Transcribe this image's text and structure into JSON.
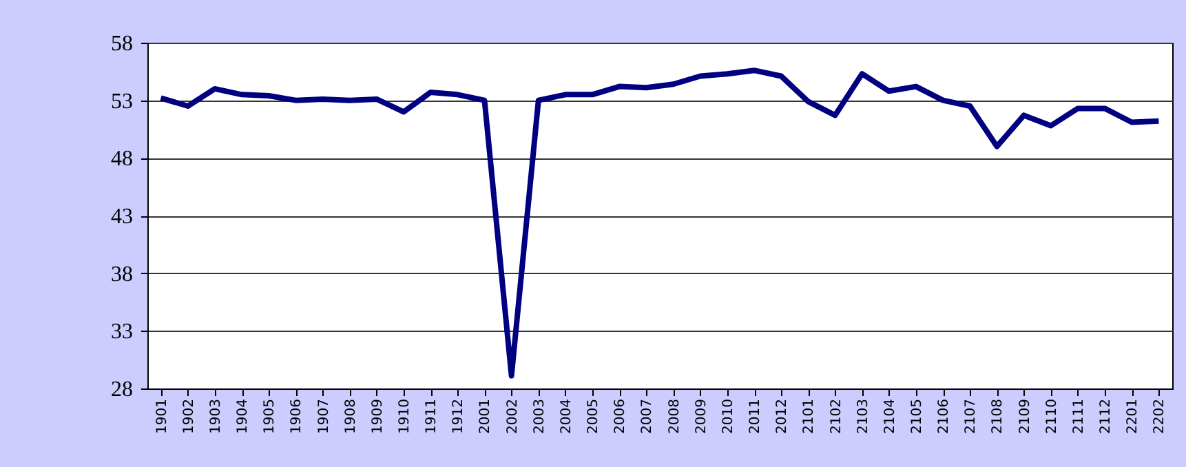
{
  "chart_data": {
    "type": "line",
    "categories": [
      "1901",
      "1902",
      "1903",
      "1904",
      "1905",
      "1906",
      "1907",
      "1908",
      "1909",
      "1910",
      "1911",
      "1912",
      "2001",
      "2002",
      "2003",
      "2004",
      "2005",
      "2006",
      "2007",
      "2008",
      "2009",
      "2010",
      "2011",
      "2012",
      "2101",
      "2102",
      "2103",
      "2104",
      "2105",
      "2106",
      "2107",
      "2108",
      "2109",
      "2110",
      "2111",
      "2112",
      "2201",
      "2202"
    ],
    "series": [
      {
        "color": "#000080",
        "values": [
          53.2,
          52.5,
          54.0,
          53.5,
          53.4,
          53.0,
          53.1,
          53.0,
          53.1,
          52.0,
          53.7,
          53.5,
          53.0,
          29.1,
          53.0,
          53.5,
          53.5,
          54.2,
          54.1,
          54.4,
          55.1,
          55.3,
          55.6,
          55.1,
          52.9,
          51.7,
          55.3,
          53.8,
          54.2,
          53.0,
          52.5,
          49.0,
          51.7,
          50.8,
          52.3,
          52.3,
          51.1,
          51.2
        ]
      }
    ],
    "ylim": [
      28,
      58
    ],
    "yticks": [
      28,
      33,
      38,
      43,
      48,
      53,
      58
    ],
    "grid": "y",
    "marker": "none",
    "line_style": "solid",
    "legend": false
  }
}
